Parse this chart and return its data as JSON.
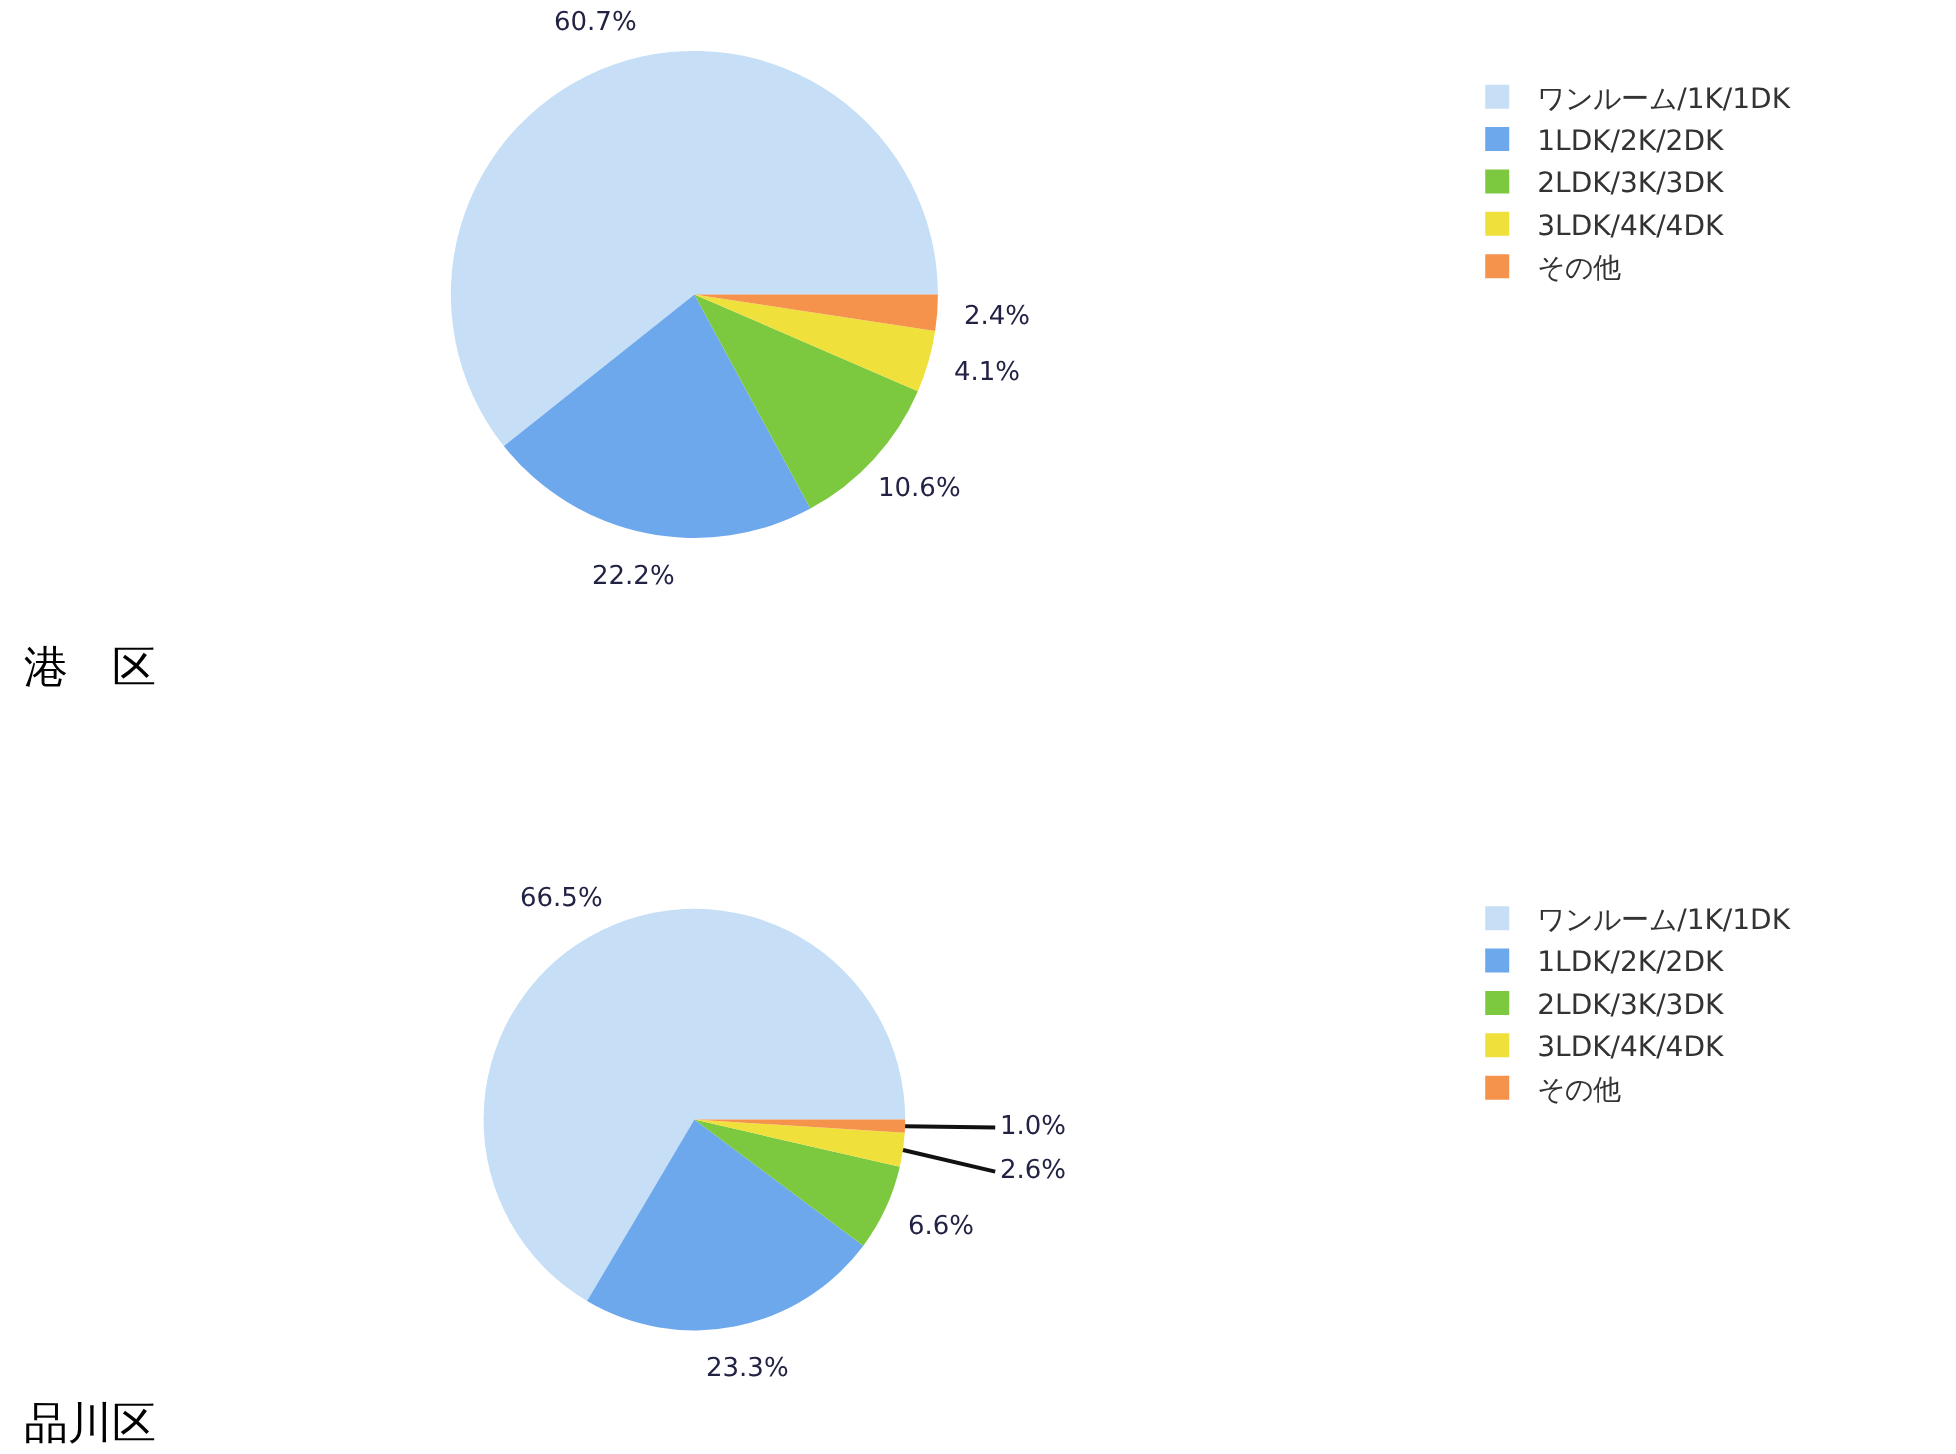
{
  "chart_data": [
    {
      "type": "pie",
      "title": "港　区",
      "categories": [
        "ワンルーム/1K/1DK",
        "1LDK/2K/2DK",
        "2LDK/3K/3DK",
        "3LDK/4K/4DK",
        "その他"
      ],
      "values": [
        60.7,
        22.2,
        10.6,
        4.1,
        2.4
      ],
      "value_labels": [
        "60.7%",
        "22.2%",
        "10.6%",
        "4.1%",
        "2.4%"
      ],
      "colors": [
        "#c6dff6",
        "#6ea8ec",
        "#7cc83e",
        "#f0e03c",
        "#f5924c"
      ],
      "legend": "right"
    },
    {
      "type": "pie",
      "title": "品川区",
      "categories": [
        "ワンルーム/1K/1DK",
        "1LDK/2K/2DK",
        "2LDK/3K/3DK",
        "3LDK/4K/4DK",
        "その他"
      ],
      "values": [
        66.5,
        23.3,
        6.6,
        2.6,
        1.0
      ],
      "value_labels": [
        "66.5%",
        "23.3%",
        "6.6%",
        "2.6%",
        "1.0%"
      ],
      "colors": [
        "#c6dff6",
        "#6ea8ec",
        "#7cc83e",
        "#f0e03c",
        "#f5924c"
      ],
      "legend": "right"
    }
  ]
}
